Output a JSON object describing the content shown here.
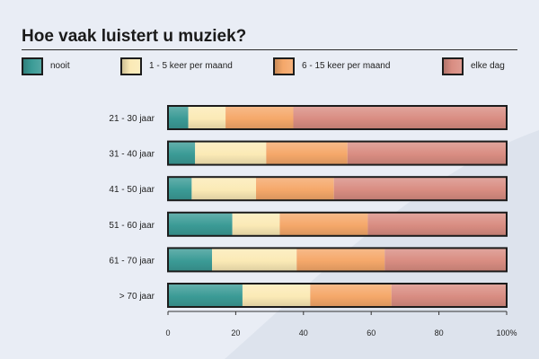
{
  "chart_data": {
    "type": "bar",
    "orientation": "horizontal",
    "stacked": true,
    "title": "Hoe vaak luistert u muziek?",
    "categories": [
      "21 - 30 jaar",
      "31 - 40 jaar",
      "41 - 50 jaar",
      "51 - 60 jaar",
      "61 - 70 jaar",
      "> 70 jaar"
    ],
    "series": [
      {
        "name": "nooit",
        "color": "#3b9b96",
        "values": [
          6,
          8,
          7,
          19,
          13,
          22
        ]
      },
      {
        "name": "1 - 5 keer per maand",
        "color": "#fbeab6",
        "values": [
          11,
          21,
          19,
          14,
          25,
          20
        ]
      },
      {
        "name": "6 - 15 keer per maand",
        "color": "#f5a86a",
        "values": [
          20,
          24,
          23,
          26,
          26,
          24
        ]
      },
      {
        "name": "elke dag",
        "color": "#d98d82",
        "values": [
          63,
          47,
          51,
          41,
          36,
          34
        ]
      }
    ],
    "xlim": [
      0,
      100
    ],
    "xticks": [
      "0",
      "20",
      "40",
      "60",
      "80",
      "100%"
    ],
    "legend_position": "top"
  }
}
